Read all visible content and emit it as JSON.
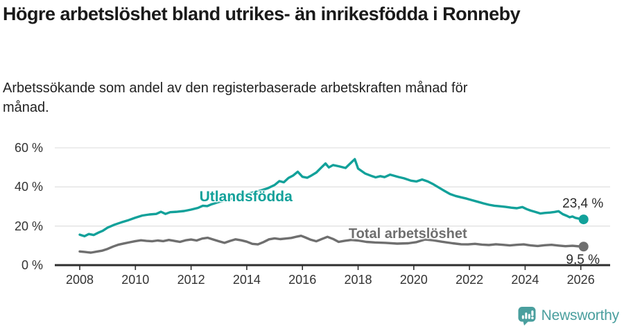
{
  "header": {
    "title": "Högre arbetslöshet bland utrikes- än inrikesfödda i Ronneby",
    "subtitle": "Arbetssökande som andel av den registerbaserade arbetskraften månad för månad."
  },
  "chart_data": {
    "type": "line",
    "title": "Högre arbetslöshet bland utrikes- än inrikesfödda i Ronneby",
    "subtitle": "Arbetssökande som andel av den registerbaserade arbetskraften månad för månad.",
    "x_unit": "year_decimal_monthly",
    "xlim": [
      2007.1,
      2027.05
    ],
    "ylim": [
      0,
      63
    ],
    "grid": "horizontal",
    "x_ticks": [
      {
        "year": 2008,
        "label": "2008"
      },
      {
        "year": 2010,
        "label": "2010"
      },
      {
        "year": 2012,
        "label": "2012"
      },
      {
        "year": 2014,
        "label": "2014"
      },
      {
        "year": 2016,
        "label": "2016"
      },
      {
        "year": 2018,
        "label": "2018"
      },
      {
        "year": 2020,
        "label": "2020"
      },
      {
        "year": 2022,
        "label": "2022"
      },
      {
        "year": 2024,
        "label": "2024"
      },
      {
        "year": 2026,
        "label": "2026"
      }
    ],
    "y_ticks": [
      {
        "value": 0,
        "label": "0 %"
      },
      {
        "value": 20,
        "label": "20 %"
      },
      {
        "value": 40,
        "label": "40 %"
      },
      {
        "value": 60,
        "label": "60 %"
      }
    ],
    "series": [
      {
        "name": "Utlandsfödda",
        "color": "#12a19a",
        "end_label": "23,4 %",
        "end_value": 23.4,
        "end_label_side": "above",
        "label_anchor": {
          "year": 2012.3,
          "value": 34.4
        },
        "points": [
          [
            2008.0,
            15.6
          ],
          [
            2008.17,
            14.8
          ],
          [
            2008.33,
            15.9
          ],
          [
            2008.5,
            15.4
          ],
          [
            2008.67,
            16.6
          ],
          [
            2008.83,
            17.6
          ],
          [
            2009.0,
            19.2
          ],
          [
            2009.25,
            20.7
          ],
          [
            2009.5,
            21.9
          ],
          [
            2009.75,
            23.0
          ],
          [
            2010.0,
            24.3
          ],
          [
            2010.25,
            25.4
          ],
          [
            2010.5,
            25.9
          ],
          [
            2010.75,
            26.2
          ],
          [
            2010.92,
            27.3
          ],
          [
            2011.08,
            26.2
          ],
          [
            2011.25,
            27.1
          ],
          [
            2011.5,
            27.3
          ],
          [
            2011.75,
            27.7
          ],
          [
            2012.0,
            28.4
          ],
          [
            2012.25,
            29.3
          ],
          [
            2012.42,
            30.4
          ],
          [
            2012.58,
            30.2
          ],
          [
            2012.75,
            31.2
          ],
          [
            2013.0,
            32.3
          ],
          [
            2013.25,
            33.2
          ],
          [
            2013.5,
            34.2
          ],
          [
            2013.75,
            35.3
          ],
          [
            2014.0,
            36.3
          ],
          [
            2014.25,
            37.3
          ],
          [
            2014.5,
            38.2
          ],
          [
            2014.75,
            39.3
          ],
          [
            2015.0,
            41.0
          ],
          [
            2015.17,
            43.0
          ],
          [
            2015.33,
            42.4
          ],
          [
            2015.5,
            44.6
          ],
          [
            2015.67,
            45.9
          ],
          [
            2015.83,
            47.8
          ],
          [
            2016.0,
            45.2
          ],
          [
            2016.17,
            44.7
          ],
          [
            2016.33,
            45.9
          ],
          [
            2016.5,
            47.4
          ],
          [
            2016.67,
            49.8
          ],
          [
            2016.83,
            52.0
          ],
          [
            2016.95,
            50.0
          ],
          [
            2017.1,
            51.2
          ],
          [
            2017.3,
            50.6
          ],
          [
            2017.55,
            49.7
          ],
          [
            2017.7,
            51.8
          ],
          [
            2017.88,
            54.2
          ],
          [
            2018.0,
            49.4
          ],
          [
            2018.25,
            46.9
          ],
          [
            2018.5,
            45.5
          ],
          [
            2018.63,
            44.9
          ],
          [
            2018.8,
            45.5
          ],
          [
            2018.95,
            45.0
          ],
          [
            2019.15,
            46.3
          ],
          [
            2019.45,
            45.1
          ],
          [
            2019.65,
            44.4
          ],
          [
            2019.9,
            43.2
          ],
          [
            2020.1,
            42.8
          ],
          [
            2020.3,
            43.8
          ],
          [
            2020.5,
            42.8
          ],
          [
            2020.7,
            41.4
          ],
          [
            2020.9,
            39.7
          ],
          [
            2021.1,
            38.0
          ],
          [
            2021.3,
            36.4
          ],
          [
            2021.5,
            35.4
          ],
          [
            2021.7,
            34.7
          ],
          [
            2021.9,
            34.0
          ],
          [
            2022.1,
            33.2
          ],
          [
            2022.3,
            32.4
          ],
          [
            2022.5,
            31.6
          ],
          [
            2022.7,
            30.9
          ],
          [
            2022.9,
            30.4
          ],
          [
            2023.1,
            30.1
          ],
          [
            2023.3,
            29.8
          ],
          [
            2023.5,
            29.4
          ],
          [
            2023.7,
            29.1
          ],
          [
            2023.9,
            29.7
          ],
          [
            2024.05,
            28.7
          ],
          [
            2024.2,
            27.9
          ],
          [
            2024.4,
            27.1
          ],
          [
            2024.55,
            26.4
          ],
          [
            2024.7,
            26.7
          ],
          [
            2024.9,
            26.9
          ],
          [
            2025.05,
            27.2
          ],
          [
            2025.2,
            27.6
          ],
          [
            2025.35,
            26.1
          ],
          [
            2025.5,
            25.2
          ],
          [
            2025.6,
            24.5
          ],
          [
            2025.7,
            24.9
          ],
          [
            2025.8,
            24.2
          ],
          [
            2025.95,
            23.7
          ],
          [
            2026.1,
            23.4
          ]
        ]
      },
      {
        "name": "Total arbetslöshet",
        "color": "#6f6f6f",
        "end_label": "9,5 %",
        "end_value": 9.5,
        "end_label_side": "below",
        "label_anchor": {
          "year": 2017.66,
          "value": 15.6
        },
        "points": [
          [
            2008.0,
            7.0
          ],
          [
            2008.2,
            6.7
          ],
          [
            2008.4,
            6.4
          ],
          [
            2008.6,
            6.9
          ],
          [
            2008.8,
            7.4
          ],
          [
            2009.0,
            8.3
          ],
          [
            2009.2,
            9.5
          ],
          [
            2009.4,
            10.5
          ],
          [
            2009.6,
            11.1
          ],
          [
            2009.8,
            11.7
          ],
          [
            2010.0,
            12.3
          ],
          [
            2010.2,
            12.7
          ],
          [
            2010.4,
            12.4
          ],
          [
            2010.6,
            12.2
          ],
          [
            2010.8,
            12.6
          ],
          [
            2011.0,
            12.3
          ],
          [
            2011.2,
            12.9
          ],
          [
            2011.4,
            12.4
          ],
          [
            2011.6,
            11.9
          ],
          [
            2011.8,
            12.7
          ],
          [
            2012.0,
            13.1
          ],
          [
            2012.2,
            12.6
          ],
          [
            2012.4,
            13.6
          ],
          [
            2012.6,
            14.0
          ],
          [
            2012.8,
            13.1
          ],
          [
            2013.0,
            12.2
          ],
          [
            2013.2,
            11.4
          ],
          [
            2013.4,
            12.4
          ],
          [
            2013.6,
            13.2
          ],
          [
            2013.8,
            12.7
          ],
          [
            2014.0,
            12.0
          ],
          [
            2014.2,
            10.9
          ],
          [
            2014.4,
            10.6
          ],
          [
            2014.6,
            11.8
          ],
          [
            2014.8,
            13.2
          ],
          [
            2015.0,
            13.7
          ],
          [
            2015.2,
            13.3
          ],
          [
            2015.4,
            13.6
          ],
          [
            2015.6,
            13.9
          ],
          [
            2015.8,
            14.6
          ],
          [
            2015.95,
            15.0
          ],
          [
            2016.1,
            14.2
          ],
          [
            2016.3,
            13.0
          ],
          [
            2016.5,
            12.2
          ],
          [
            2016.7,
            13.4
          ],
          [
            2016.9,
            14.5
          ],
          [
            2017.1,
            13.4
          ],
          [
            2017.3,
            11.9
          ],
          [
            2017.5,
            12.4
          ],
          [
            2017.75,
            12.9
          ],
          [
            2018.0,
            12.6
          ],
          [
            2018.3,
            11.9
          ],
          [
            2018.6,
            11.6
          ],
          [
            2019.0,
            11.4
          ],
          [
            2019.4,
            11.0
          ],
          [
            2019.8,
            11.2
          ],
          [
            2020.1,
            11.8
          ],
          [
            2020.4,
            13.1
          ],
          [
            2020.7,
            12.7
          ],
          [
            2021.0,
            12.0
          ],
          [
            2021.4,
            11.2
          ],
          [
            2021.7,
            10.7
          ],
          [
            2021.95,
            10.6
          ],
          [
            2022.2,
            10.9
          ],
          [
            2022.45,
            10.5
          ],
          [
            2022.7,
            10.3
          ],
          [
            2022.95,
            10.7
          ],
          [
            2023.2,
            10.4
          ],
          [
            2023.45,
            10.1
          ],
          [
            2023.7,
            10.4
          ],
          [
            2023.95,
            10.6
          ],
          [
            2024.2,
            10.1
          ],
          [
            2024.45,
            9.8
          ],
          [
            2024.7,
            10.2
          ],
          [
            2024.95,
            10.4
          ],
          [
            2025.2,
            10.0
          ],
          [
            2025.45,
            9.7
          ],
          [
            2025.7,
            9.9
          ],
          [
            2025.95,
            9.6
          ],
          [
            2026.1,
            9.5
          ]
        ]
      }
    ]
  },
  "colors": {
    "accent_teal": "#12a19a",
    "series_gray": "#6f6f6f",
    "gridline": "#e2e2e2",
    "axis": "#333333",
    "logo_teal": "#4a9f9e",
    "text_dark": "#1a1a1a"
  },
  "footer": {
    "brand": "Newsworthy"
  }
}
